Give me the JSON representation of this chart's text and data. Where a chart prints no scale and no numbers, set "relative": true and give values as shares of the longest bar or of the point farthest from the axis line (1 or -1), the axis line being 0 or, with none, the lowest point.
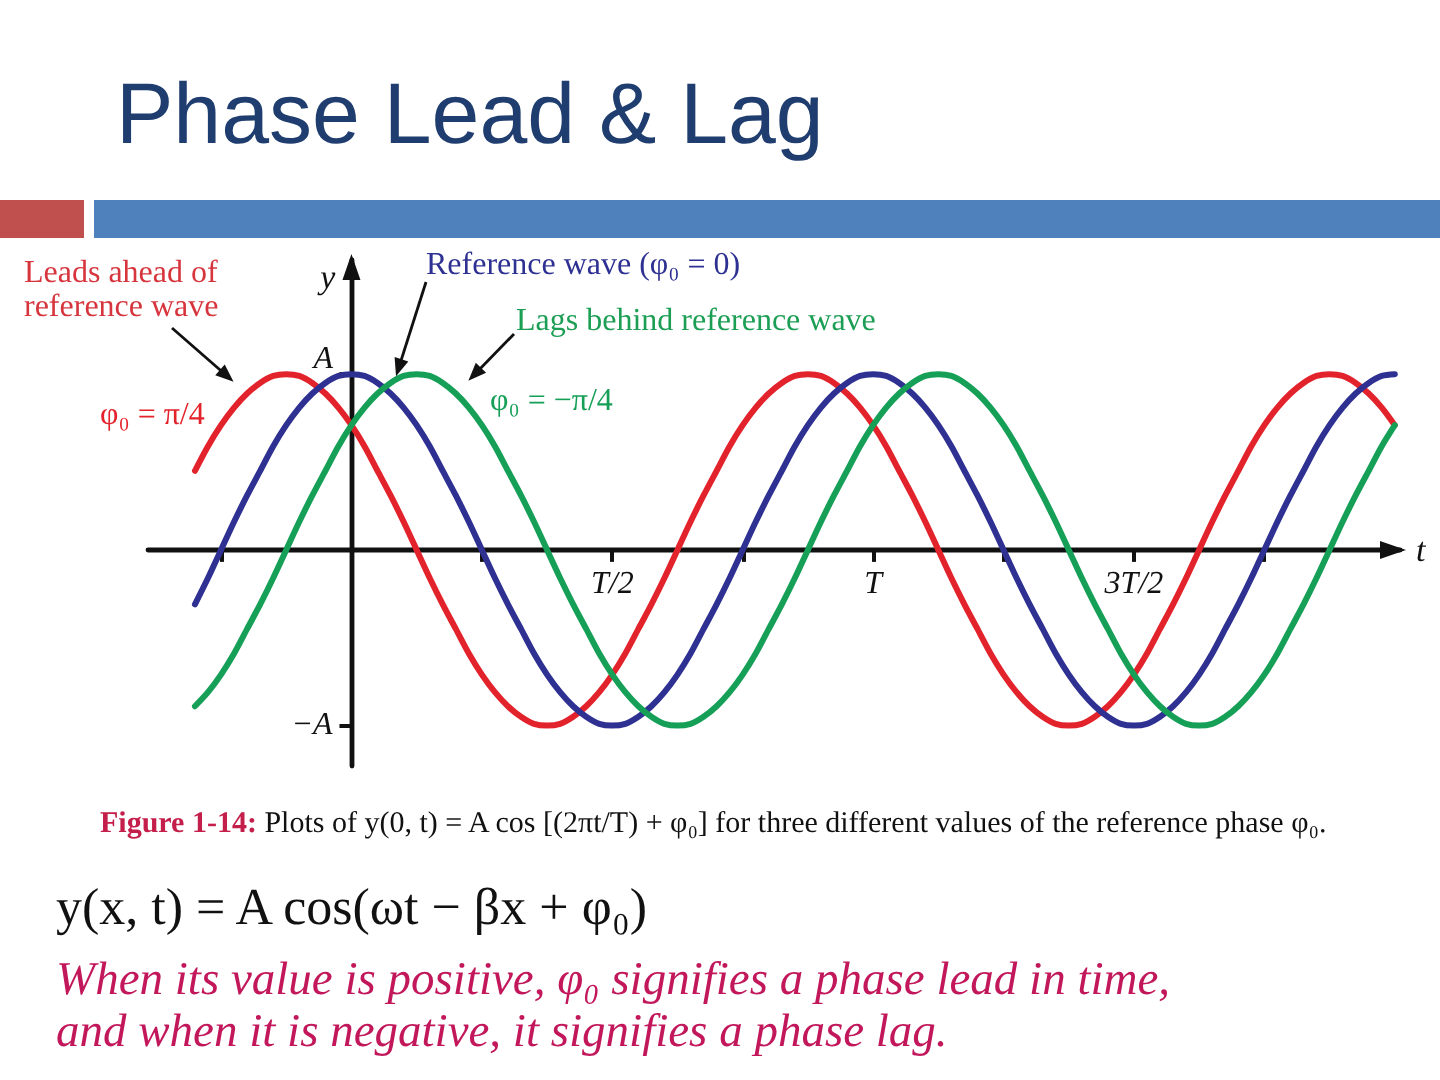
{
  "chart_data": {
    "type": "line",
    "title": "Phase Lead & Lag",
    "xlabel": "t",
    "ylabel": "y",
    "relative": true,
    "categories": [
      null,
      null,
      null,
      null,
      null,
      null,
      null,
      null,
      null,
      null,
      null,
      null,
      null,
      null,
      null,
      null,
      null,
      null,
      null,
      null,
      null,
      null,
      null,
      null,
      null,
      null,
      null,
      null,
      null,
      null,
      null,
      null,
      "T/2",
      null,
      null,
      null,
      null,
      null,
      null,
      null,
      null,
      null,
      null,
      null,
      null,
      null,
      null,
      null,
      null,
      null,
      null,
      null,
      "T",
      null,
      null,
      null,
      null,
      null,
      null,
      null,
      null,
      null,
      null,
      null,
      null,
      null,
      null,
      null,
      null,
      null,
      null,
      null,
      "3T/2",
      null,
      null,
      null,
      null,
      null,
      null,
      null,
      null,
      null,
      null,
      null,
      null,
      null,
      null,
      null,
      null,
      null,
      null,
      null,
      null
    ],
    "series": [
      {
        "name": "φ₀ = π/4",
        "color": "#e3232c",
        "values": [
          0.45,
          0.59,
          0.71,
          0.81,
          0.89,
          0.95,
          0.99,
          1,
          0.99,
          0.95,
          0.89,
          0.81,
          0.71,
          0.59,
          0.45,
          0.31,
          0.16,
          0,
          -0.16,
          -0.31,
          -0.45,
          -0.59,
          -0.71,
          -0.81,
          -0.89,
          -0.95,
          -0.99,
          -1,
          -0.99,
          -0.95,
          -0.89,
          -0.81,
          -0.71,
          -0.59,
          -0.45,
          -0.31,
          -0.16,
          0,
          0.16,
          0.31,
          0.45,
          0.59,
          0.71,
          0.81,
          0.89,
          0.95,
          0.99,
          1,
          0.99,
          0.95,
          0.89,
          0.81,
          0.71,
          0.59,
          0.45,
          0.31,
          0.16,
          0,
          -0.16,
          -0.31,
          -0.45,
          -0.59,
          -0.71,
          -0.81,
          -0.89,
          -0.95,
          -0.99,
          -1,
          -0.99,
          -0.95,
          -0.89,
          -0.81,
          -0.71,
          -0.59,
          -0.45,
          -0.31,
          -0.16,
          0,
          0.16,
          0.31,
          0.45,
          0.59,
          0.71,
          0.81,
          0.89,
          0.95,
          0.99,
          1,
          0.99,
          0.95,
          0.89,
          0.81,
          0.71
        ]
      },
      {
        "name": "Reference wave (φ₀ = 0)",
        "color": "#2e3192",
        "values": [
          -0.31,
          -0.16,
          0,
          0.16,
          0.31,
          0.45,
          0.59,
          0.71,
          0.81,
          0.89,
          0.95,
          0.99,
          1,
          0.99,
          0.95,
          0.89,
          0.81,
          0.71,
          0.59,
          0.45,
          0.31,
          0.16,
          0,
          -0.16,
          -0.31,
          -0.45,
          -0.59,
          -0.71,
          -0.81,
          -0.89,
          -0.95,
          -0.99,
          -1,
          -0.99,
          -0.95,
          -0.89,
          -0.81,
          -0.71,
          -0.59,
          -0.45,
          -0.31,
          -0.16,
          0,
          0.16,
          0.31,
          0.45,
          0.59,
          0.71,
          0.81,
          0.89,
          0.95,
          0.99,
          1,
          0.99,
          0.95,
          0.89,
          0.81,
          0.71,
          0.59,
          0.45,
          0.31,
          0.16,
          0,
          -0.16,
          -0.31,
          -0.45,
          -0.59,
          -0.71,
          -0.81,
          -0.89,
          -0.95,
          -0.99,
          -1,
          -0.99,
          -0.95,
          -0.89,
          -0.81,
          -0.71,
          -0.59,
          -0.45,
          -0.31,
          -0.16,
          0,
          0.16,
          0.31,
          0.45,
          0.59,
          0.71,
          0.81,
          0.89,
          0.95,
          0.99,
          1
        ]
      },
      {
        "name": "φ₀ = −π/4",
        "color": "#16a057",
        "values": [
          -0.89,
          -0.81,
          -0.71,
          -0.59,
          -0.45,
          -0.31,
          -0.16,
          0,
          0.16,
          0.31,
          0.45,
          0.59,
          0.71,
          0.81,
          0.89,
          0.95,
          0.99,
          1,
          0.99,
          0.95,
          0.89,
          0.81,
          0.71,
          0.59,
          0.45,
          0.31,
          0.16,
          0,
          -0.16,
          -0.31,
          -0.45,
          -0.59,
          -0.71,
          -0.81,
          -0.89,
          -0.95,
          -0.99,
          -1,
          -0.99,
          -0.95,
          -0.89,
          -0.81,
          -0.71,
          -0.59,
          -0.45,
          -0.31,
          -0.16,
          0,
          0.16,
          0.31,
          0.45,
          0.59,
          0.71,
          0.81,
          0.89,
          0.95,
          0.99,
          1,
          0.99,
          0.95,
          0.89,
          0.81,
          0.71,
          0.59,
          0.45,
          0.31,
          0.16,
          0,
          -0.16,
          -0.31,
          -0.45,
          -0.59,
          -0.71,
          -0.81,
          -0.89,
          -0.95,
          -0.99,
          -1,
          -0.99,
          -0.95,
          -0.89,
          -0.81,
          -0.71,
          -0.59,
          -0.45,
          -0.31,
          -0.16,
          0,
          0.16,
          0.31,
          0.45,
          0.59,
          0.71
        ]
      }
    ],
    "annotations": [
      "Leads ahead of reference wave",
      "Lags behind reference wave",
      "A",
      "−A",
      "Figure 1-14: Plots of y(0, t) = A cos [(2πt/T) + φ₀] for three different values of the reference phase φ₀.",
      "y(x, t) = A cos(ωt − βx + φ₀)",
      "When its value is positive, φ₀ signifies a phase lead in time, and when it is negative, it signifies a phase lag."
    ]
  }
}
